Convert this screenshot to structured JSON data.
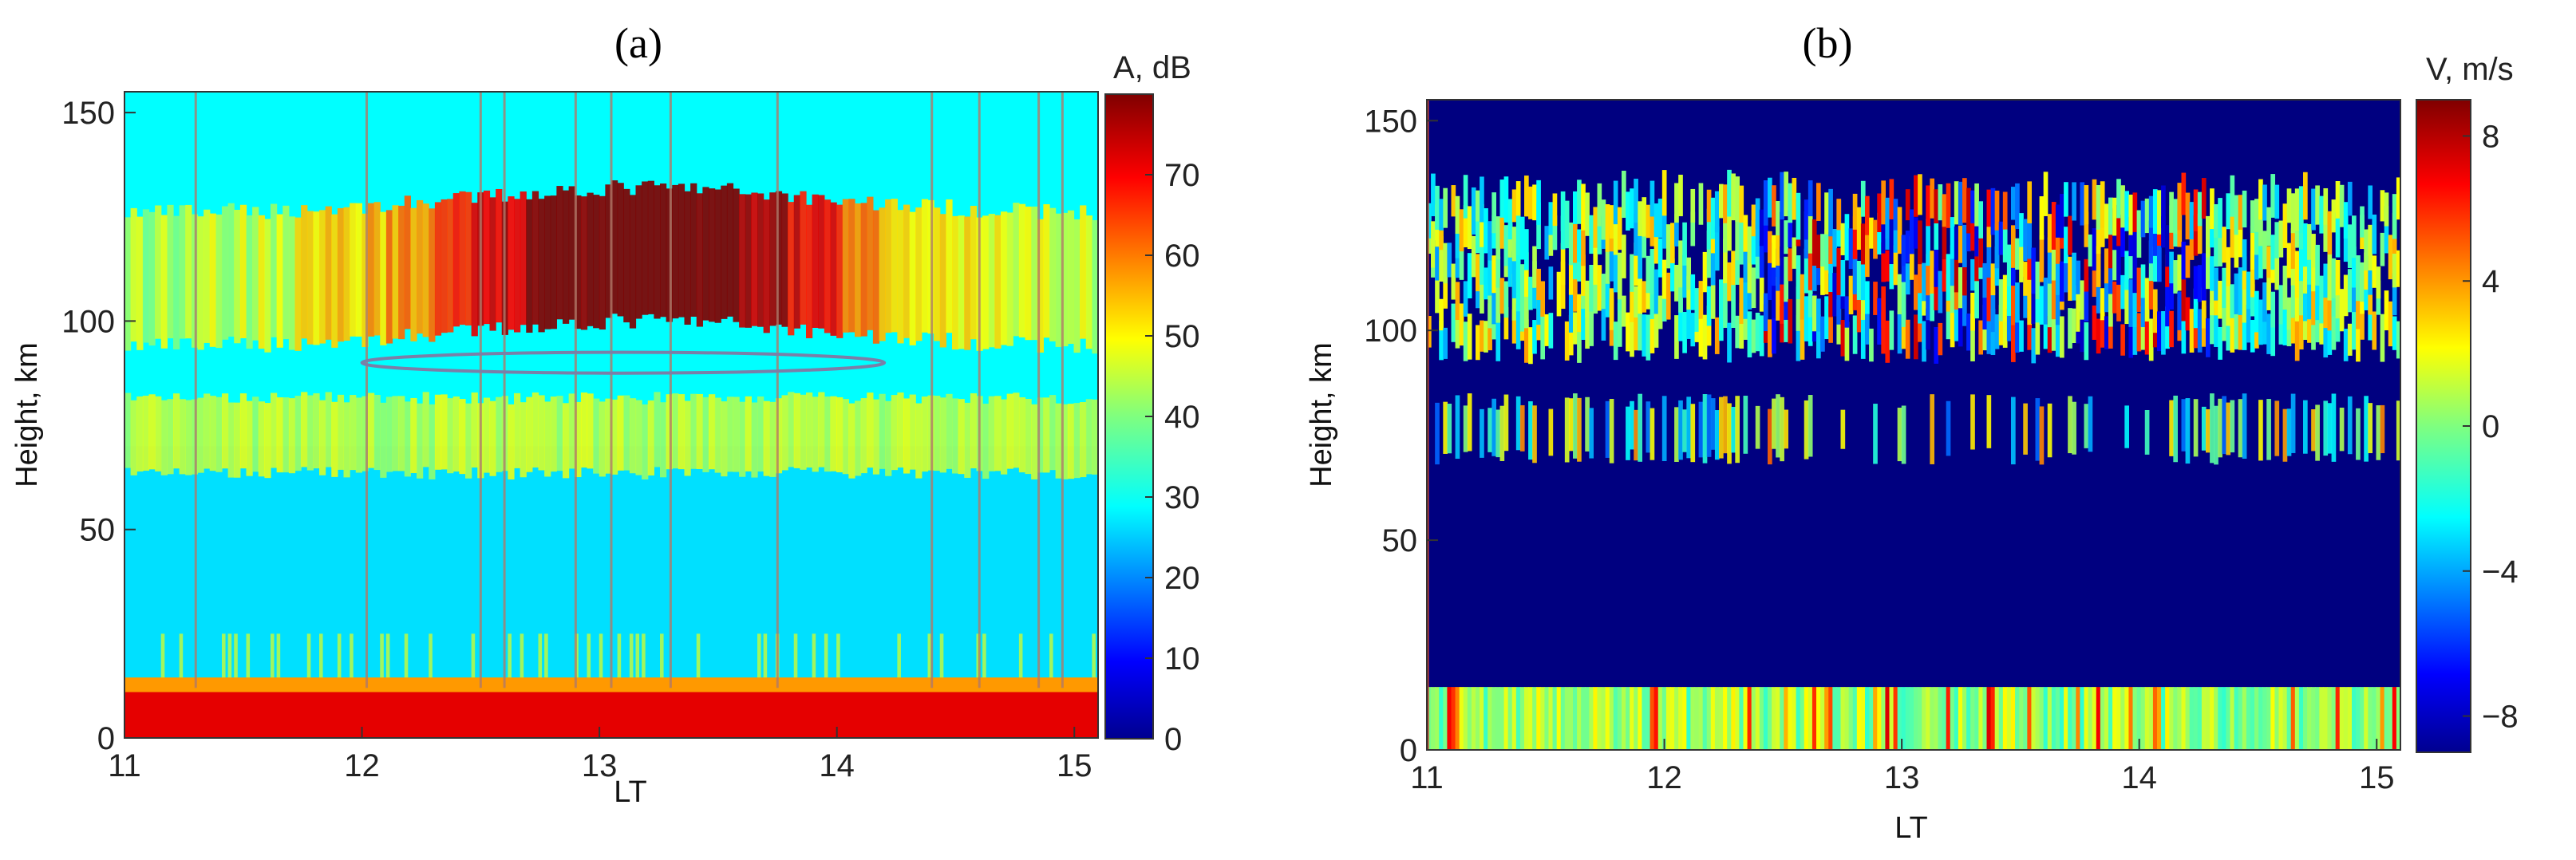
{
  "chart_data": [
    {
      "type": "heatmap",
      "panel_label": "(a)",
      "xlabel": "LT",
      "ylabel": "Height, km",
      "xlim": [
        11,
        15.1
      ],
      "ylim": [
        0,
        155
      ],
      "x_ticks": [
        11,
        12,
        13,
        14,
        15
      ],
      "y_ticks": [
        0,
        50,
        100,
        150
      ],
      "colorbar": {
        "title": "A, dB",
        "range": [
          0,
          80
        ],
        "ticks": [
          0,
          10,
          20,
          30,
          40,
          50,
          60,
          70
        ]
      },
      "colormap": "jet",
      "layers": [
        {
          "name": "ground",
          "y": [
            0,
            12
          ],
          "level_db": 72
        },
        {
          "name": "background",
          "y": [
            12,
            155
          ],
          "level_db": 30
        },
        {
          "name": "lower layer",
          "y": [
            62,
            80
          ],
          "level_db": 46
        },
        {
          "name": "upper layer",
          "y": [
            96,
            130
          ],
          "level_db": 60
        }
      ],
      "annotation": {
        "type": "ellipse",
        "x_center": 13.1,
        "y_center": 90,
        "x_span": 2.2,
        "y_span": 5
      }
    },
    {
      "type": "heatmap",
      "panel_label": "(b)",
      "xlabel": "LT",
      "ylabel": "Height, km",
      "xlim": [
        11,
        15.1
      ],
      "ylim": [
        0,
        155
      ],
      "x_ticks": [
        11,
        12,
        13,
        14,
        15
      ],
      "y_ticks": [
        0,
        50,
        100,
        150
      ],
      "colorbar": {
        "title": "V, m/s",
        "range": [
          -9,
          9
        ],
        "ticks": [
          8,
          4,
          0,
          -4,
          -8
        ],
        "tick_labels": [
          "8",
          "4",
          "0",
          "−4",
          "−8"
        ]
      },
      "colormap": "jet",
      "layers": [
        {
          "name": "ground",
          "y": [
            0,
            15
          ],
          "level": 0.5
        },
        {
          "name": "lower layer",
          "y": [
            68,
            85
          ],
          "level": 0
        },
        {
          "name": "upper layer",
          "y": [
            95,
            132
          ],
          "level": 0
        }
      ],
      "background_level": -9
    }
  ]
}
